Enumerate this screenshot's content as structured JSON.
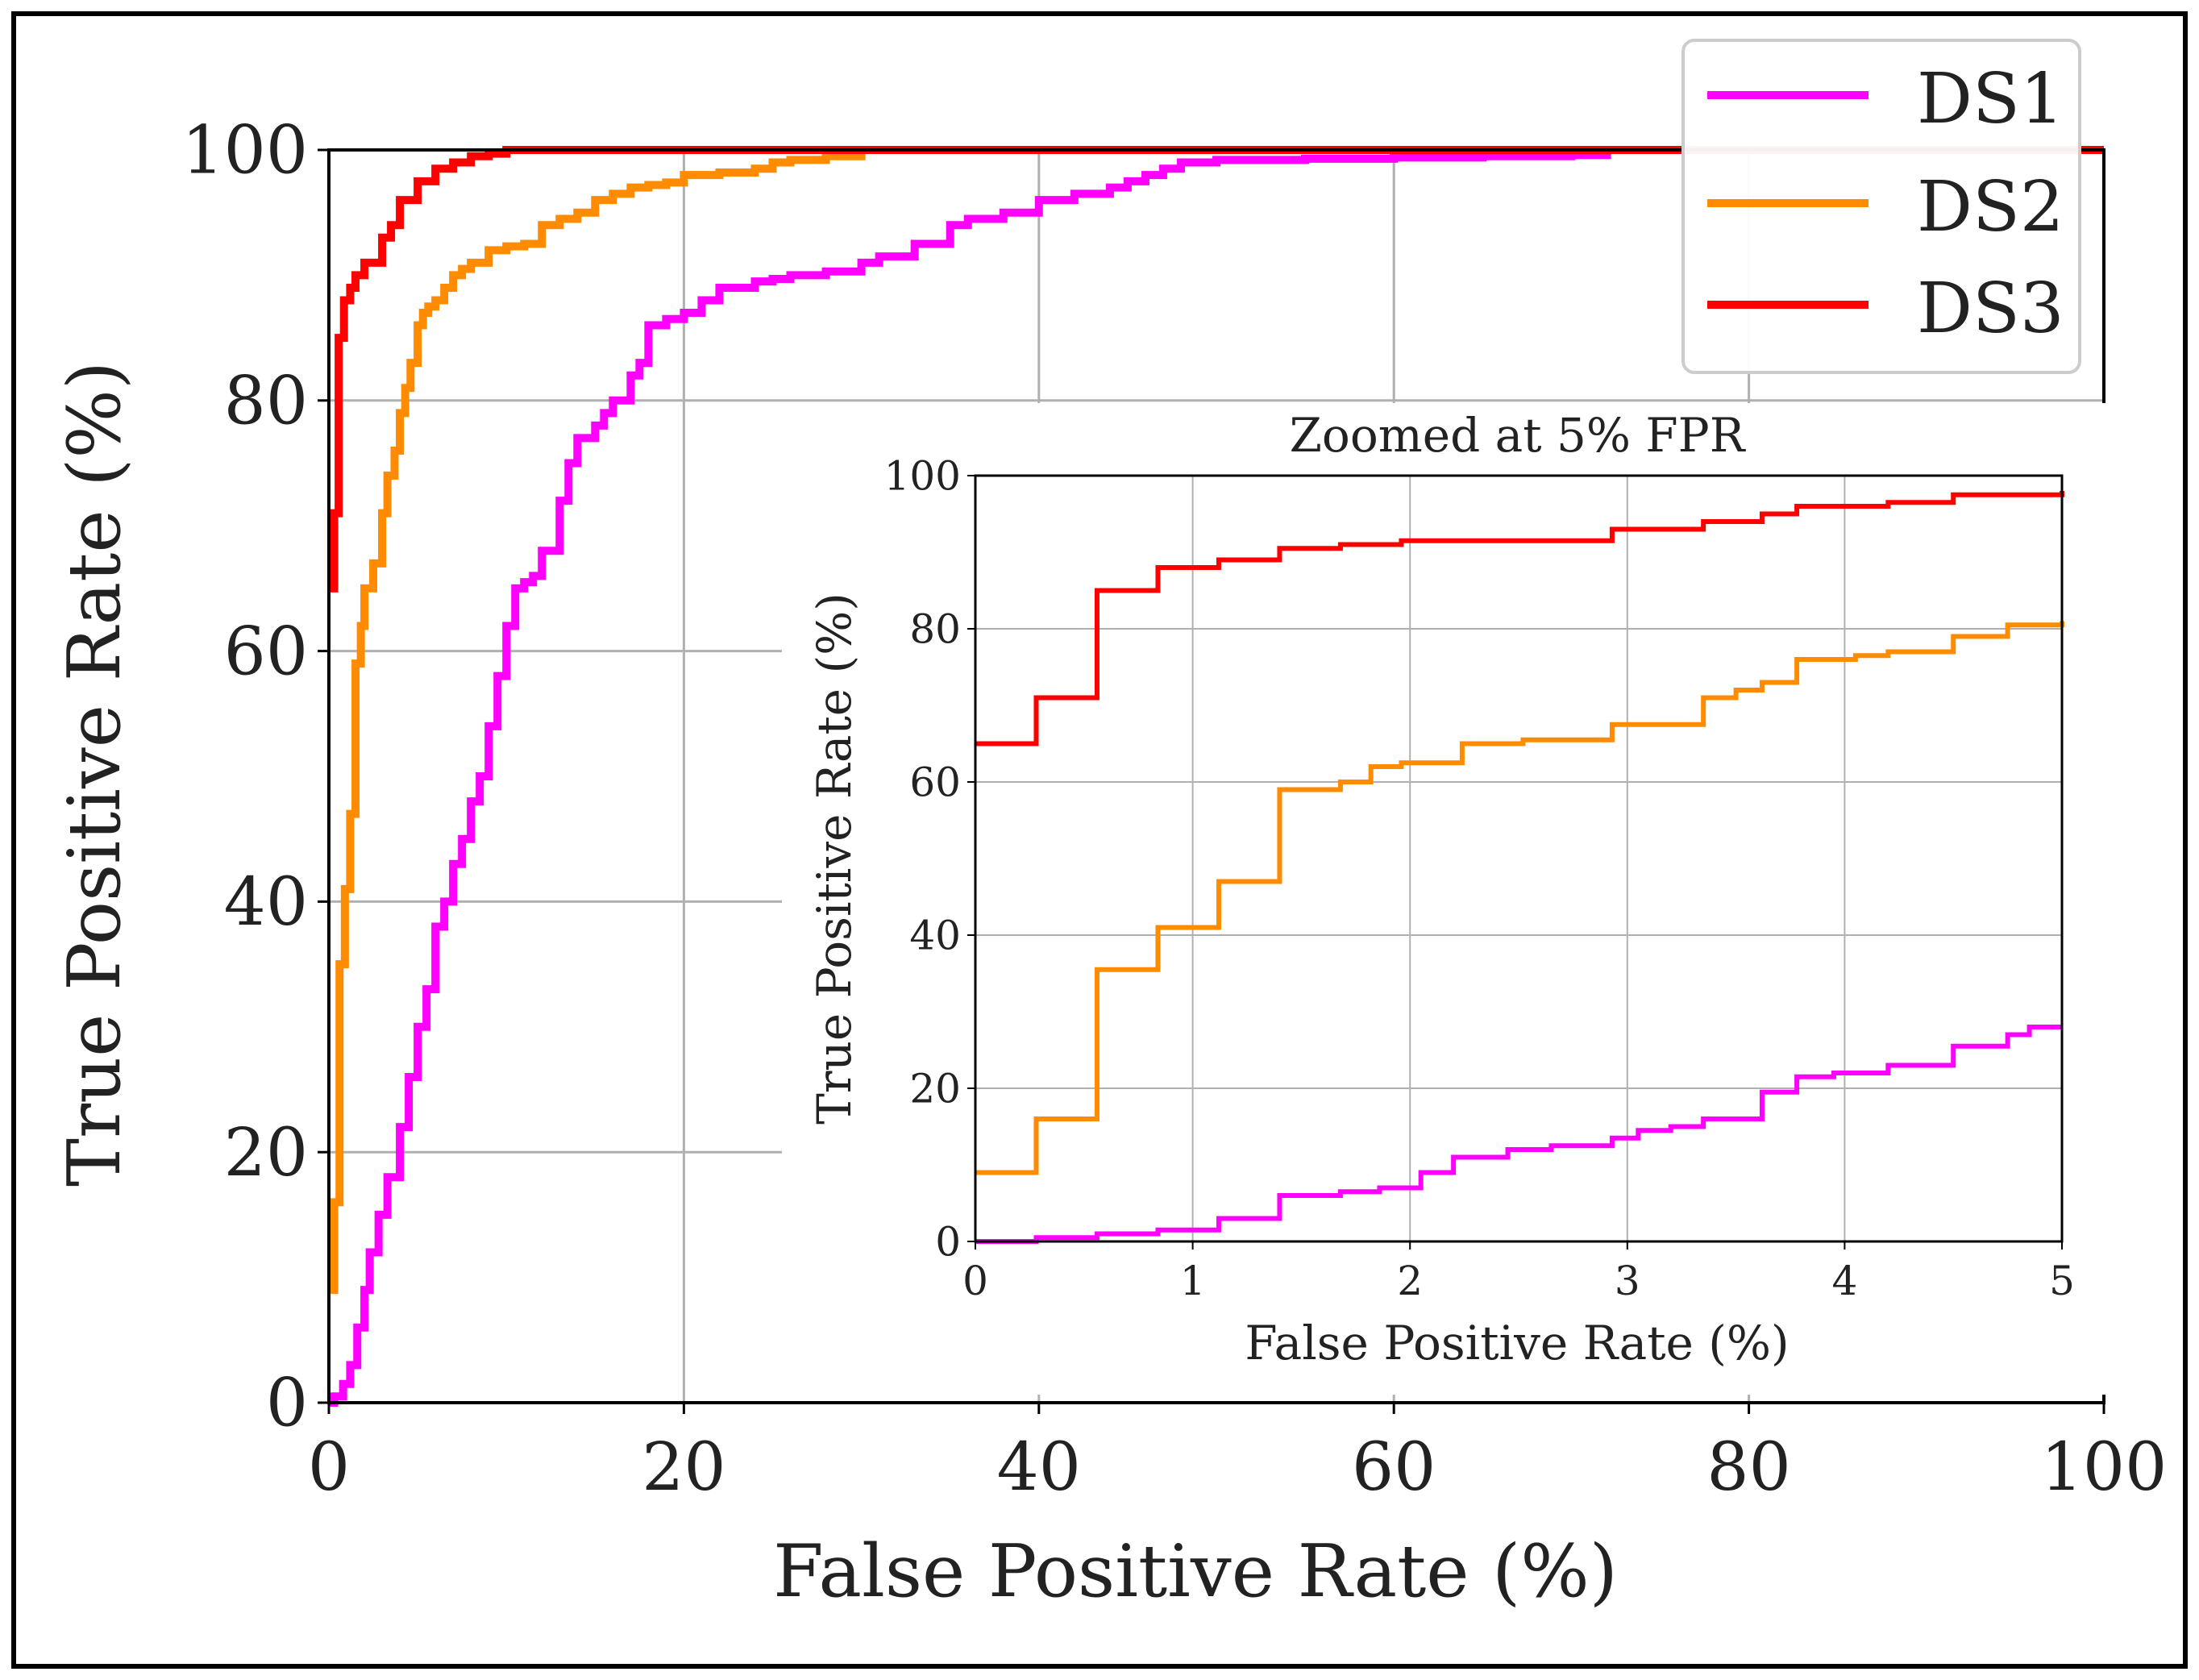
{
  "chart_data": [
    {
      "type": "line",
      "xlabel": "False Positive Rate (%)",
      "ylabel": "True Positive Rate (%)",
      "xlim": [
        0,
        100
      ],
      "ylim": [
        0,
        100
      ],
      "x_ticks": [
        "0",
        "20",
        "40",
        "60",
        "80",
        "100"
      ],
      "y_ticks": [
        "0",
        "20",
        "40",
        "60",
        "80",
        "100"
      ],
      "grid": true,
      "legend_position": "top-right",
      "series": [
        {
          "name": "DS1",
          "color": "#ff00ff",
          "x": [
            0,
            0.3,
            0.8,
            1.2,
            1.6,
            2.0,
            2.3,
            2.8,
            3.3,
            4.0,
            4.5,
            5.0,
            5.5,
            6.0,
            6.5,
            7.0,
            7.5,
            8.0,
            8.5,
            9.0,
            9.5,
            10.0,
            10.5,
            11.0,
            11.5,
            12.0,
            13.0,
            13.5,
            14.0,
            15.0,
            15.5,
            16.0,
            17.0,
            17.5,
            18.0,
            19.0,
            20.0,
            21.0,
            22.0,
            24.0,
            25.0,
            26.0,
            28.0,
            30.0,
            31.0,
            33.0,
            35.0,
            36.0,
            38.0,
            40.0,
            42.0,
            44.0,
            45.0,
            46.0,
            47.0,
            48.0,
            50.0,
            55.0,
            60.0,
            65.0,
            70.0,
            72.0,
            75.0,
            80.0,
            90.0,
            100.0
          ],
          "y": [
            0,
            0.5,
            1.5,
            3,
            6,
            9,
            12,
            15,
            18,
            22,
            26,
            30,
            33,
            38,
            40,
            43,
            45,
            48,
            50,
            54,
            58,
            62,
            65,
            65.5,
            66,
            68,
            72,
            75,
            77,
            78,
            79,
            80,
            82,
            83,
            86,
            86.5,
            87,
            88,
            89,
            89.5,
            89.7,
            90,
            90.3,
            91,
            91.5,
            92.5,
            94,
            94.5,
            95,
            96,
            96.5,
            97,
            97.5,
            98,
            98.5,
            99,
            99.2,
            99.3,
            99.4,
            99.5,
            99.6,
            100,
            100,
            100,
            100,
            100
          ]
        },
        {
          "name": "DS2",
          "color": "#ff8c00",
          "x": [
            0,
            0.3,
            0.6,
            0.9,
            1.2,
            1.5,
            1.8,
            2.0,
            2.5,
            3.0,
            3.3,
            3.7,
            4.0,
            4.3,
            4.6,
            5.0,
            5.3,
            5.6,
            6.0,
            6.5,
            7.0,
            7.5,
            8.0,
            9.0,
            10.0,
            11.0,
            12.0,
            13.0,
            14.0,
            15.0,
            16.0,
            17.0,
            18.0,
            19.0,
            20.0,
            22.0,
            24.0,
            25.0,
            26.0,
            28.0,
            30.0,
            40.0,
            60.0,
            80.0,
            100.0
          ],
          "y": [
            9,
            16,
            35,
            41,
            47,
            59,
            62,
            65,
            67,
            71,
            74,
            76,
            79,
            81,
            83,
            86,
            87,
            87.5,
            88,
            89,
            90,
            90.5,
            91,
            92,
            92.3,
            92.5,
            94,
            94.5,
            95,
            96,
            96.5,
            97,
            97.2,
            97.4,
            98,
            98.2,
            98.5,
            99,
            99.2,
            99.5,
            100,
            100,
            100,
            100,
            100
          ]
        },
        {
          "name": "DS3",
          "color": "#ff0000",
          "x": [
            0,
            0.3,
            0.55,
            0.85,
            1.2,
            1.5,
            2.0,
            3.0,
            3.5,
            4.0,
            5.0,
            6.0,
            7.0,
            8.0,
            9.0,
            10.0,
            15.0,
            20.0,
            40.0,
            60.0,
            80.0,
            100.0
          ],
          "y": [
            65,
            71,
            85,
            88,
            89,
            90,
            91,
            93,
            94,
            96,
            97.5,
            98.5,
            99,
            99.5,
            99.7,
            100,
            100,
            100,
            100,
            100,
            100,
            100
          ]
        }
      ]
    },
    {
      "type": "line",
      "title": "Zoomed at 5% FPR",
      "xlabel": "False Positive Rate (%)",
      "ylabel": "True Positive Rate (%)",
      "xlim": [
        0,
        5
      ],
      "ylim": [
        0,
        100
      ],
      "x_ticks": [
        "0",
        "1",
        "2",
        "3",
        "4",
        "5"
      ],
      "y_ticks": [
        "0",
        "20",
        "40",
        "60",
        "80",
        "100"
      ],
      "grid": true,
      "series": [
        {
          "name": "DS1",
          "color": "#ff00ff",
          "x": [
            0,
            0.28,
            0.56,
            0.84,
            1.12,
            1.4,
            1.68,
            1.86,
            2.05,
            2.2,
            2.45,
            2.65,
            2.93,
            3.05,
            3.2,
            3.35,
            3.62,
            3.78,
            3.95,
            4.2,
            4.5,
            4.75,
            4.85,
            5.0
          ],
          "y": [
            0,
            0.5,
            1,
            1.5,
            3,
            6,
            6.5,
            7,
            9,
            11,
            12,
            12.5,
            13.5,
            14.5,
            15,
            16,
            19.5,
            21.5,
            22,
            23,
            25.5,
            27,
            28,
            28
          ]
        },
        {
          "name": "DS2",
          "color": "#ff8c00",
          "x": [
            0,
            0.28,
            0.56,
            0.84,
            1.12,
            1.4,
            1.68,
            1.82,
            1.96,
            2.24,
            2.52,
            2.93,
            3.35,
            3.5,
            3.62,
            3.78,
            4.05,
            4.2,
            4.5,
            4.75,
            5.0
          ],
          "y": [
            9,
            16,
            35.5,
            41,
            47,
            59,
            60,
            62,
            62.5,
            65,
            65.5,
            67.5,
            71,
            72,
            73,
            76,
            76.5,
            77,
            79,
            80.5,
            81
          ]
        },
        {
          "name": "DS3",
          "color": "#ff0000",
          "x": [
            0,
            0.28,
            0.56,
            0.84,
            1.12,
            1.4,
            1.68,
            1.96,
            2.24,
            2.93,
            3.35,
            3.62,
            3.78,
            4.05,
            4.2,
            4.5,
            4.75,
            5.0
          ],
          "y": [
            65,
            71,
            85,
            88,
            89,
            90.5,
            91,
            91.5,
            91.5,
            93,
            94,
            95,
            96,
            96,
            96.5,
            97.5,
            97.5,
            98
          ]
        }
      ]
    }
  ]
}
